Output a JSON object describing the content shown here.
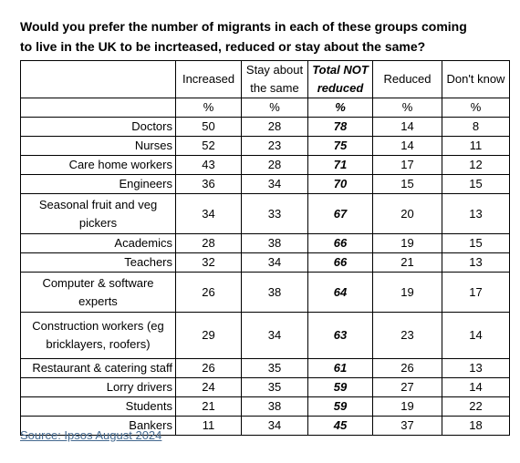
{
  "title": [
    "Would you prefer the number of migrants in each of these groups coming",
    "to live in  the UK to be incrteased, reduced or stay about the same?"
  ],
  "table": {
    "columns": [
      "Increased",
      "Stay about the same",
      "Total NOT reduced",
      "Reduced",
      "Don't know"
    ],
    "units": [
      "%",
      "%",
      "%",
      "%",
      "%"
    ],
    "rows": [
      [
        "Doctors",
        50,
        28,
        78,
        14,
        8
      ],
      [
        "Nurses",
        52,
        23,
        75,
        14,
        11
      ],
      [
        "Care home workers",
        43,
        28,
        71,
        17,
        12
      ],
      [
        "Engineers",
        36,
        34,
        70,
        15,
        15
      ],
      [
        "Seasonal fruit and veg pickers",
        34,
        33,
        67,
        20,
        13
      ],
      [
        "Academics",
        28,
        38,
        66,
        19,
        15
      ],
      [
        "Teachers",
        32,
        34,
        66,
        21,
        13
      ],
      [
        "Computer & software experts",
        26,
        38,
        64,
        19,
        17
      ],
      [
        "Construction workers (eg bricklayers, roofers)",
        29,
        34,
        63,
        23,
        14
      ],
      [
        "Restaurant & catering staff",
        26,
        35,
        61,
        26,
        13
      ],
      [
        "Lorry drivers",
        24,
        35,
        59,
        27,
        14
      ],
      [
        "Students",
        21,
        38,
        59,
        19,
        22
      ],
      [
        "Bankers",
        11,
        34,
        45,
        37,
        18
      ]
    ]
  },
  "source": "Source: Ipsos August 2024"
}
